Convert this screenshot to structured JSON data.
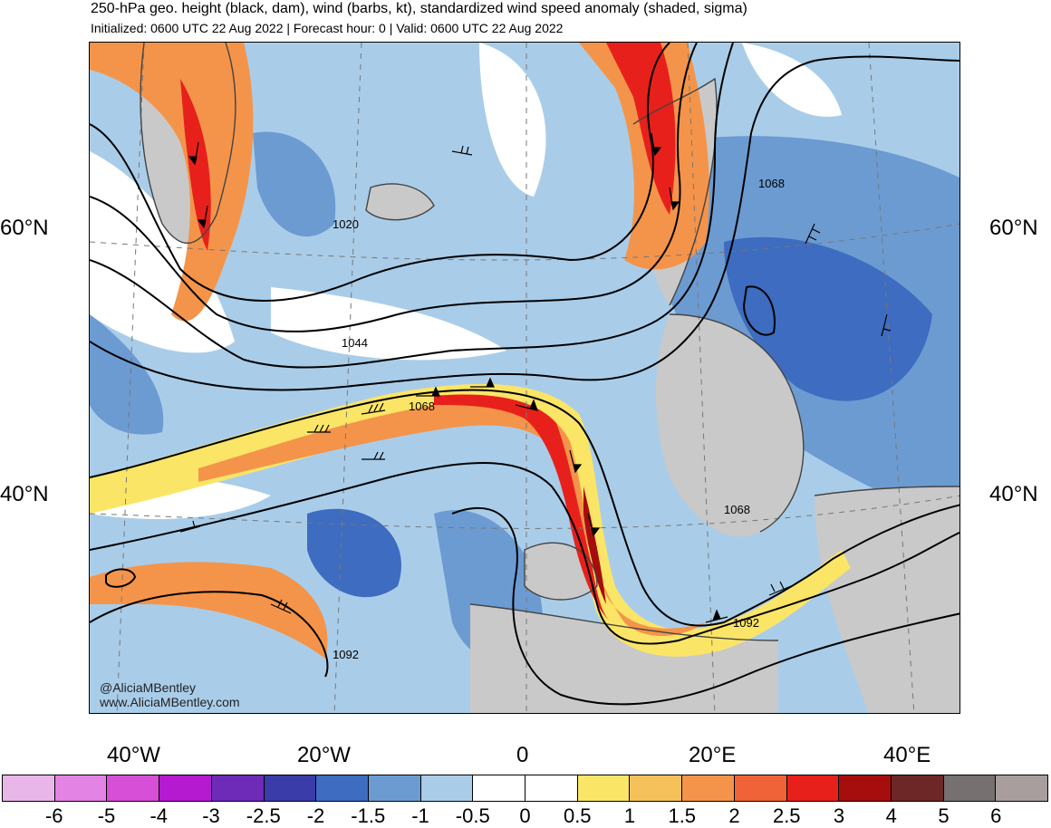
{
  "header": {
    "title": "250-hPa geo. height (black, dam), wind (barbs, kt), standardized wind speed anomaly (shaded, sigma)",
    "subtitle": "Initialized: 0600 UTC 22 Aug 2022 | Forecast hour: 0 | Valid: 0600 UTC 22 Aug 2022"
  },
  "map": {
    "lat_labels": [
      "60°N",
      "40°N"
    ],
    "lon_labels": [
      "40°W",
      "20°W",
      "0",
      "20°E",
      "40°E"
    ],
    "contour_labels": [
      "1020",
      "1044",
      "1068",
      "1068",
      "1068",
      "1092",
      "1092"
    ],
    "credits": [
      "@AliciaMBentley",
      "www.AliciaMBentley.com"
    ],
    "colors": {
      "land": "#c9c9c9",
      "anomaly_neg_light": "#a9cde9",
      "anomaly_neg": "#6c9bd2",
      "anomaly_neg_strong": "#3d6cc0",
      "anomaly_pos_light": "#fbe566",
      "anomaly_pos": "#f4944a",
      "anomaly_pos_strong": "#e8201c",
      "anomaly_pos_extreme": "#a60d0d"
    }
  },
  "colorbar": {
    "labels": [
      "-6",
      "-5",
      "-4",
      "-3",
      "-2.5",
      "-2",
      "-1.5",
      "-1",
      "-0.5",
      "0",
      "0.5",
      "1",
      "1.5",
      "2",
      "2.5",
      "3",
      "4",
      "5",
      "6"
    ],
    "colors": [
      "#e9b6e9",
      "#e383e3",
      "#d64fd6",
      "#b51ad1",
      "#6d2bb8",
      "#3a3ca9",
      "#3d6cc0",
      "#6c9bd2",
      "#a9cde9",
      "#ffffff",
      "#ffffff",
      "#fbe566",
      "#f4c15a",
      "#f4944a",
      "#f06238",
      "#e8201c",
      "#a60d0d",
      "#6e2727",
      "#777070",
      "#a89e9e"
    ]
  }
}
